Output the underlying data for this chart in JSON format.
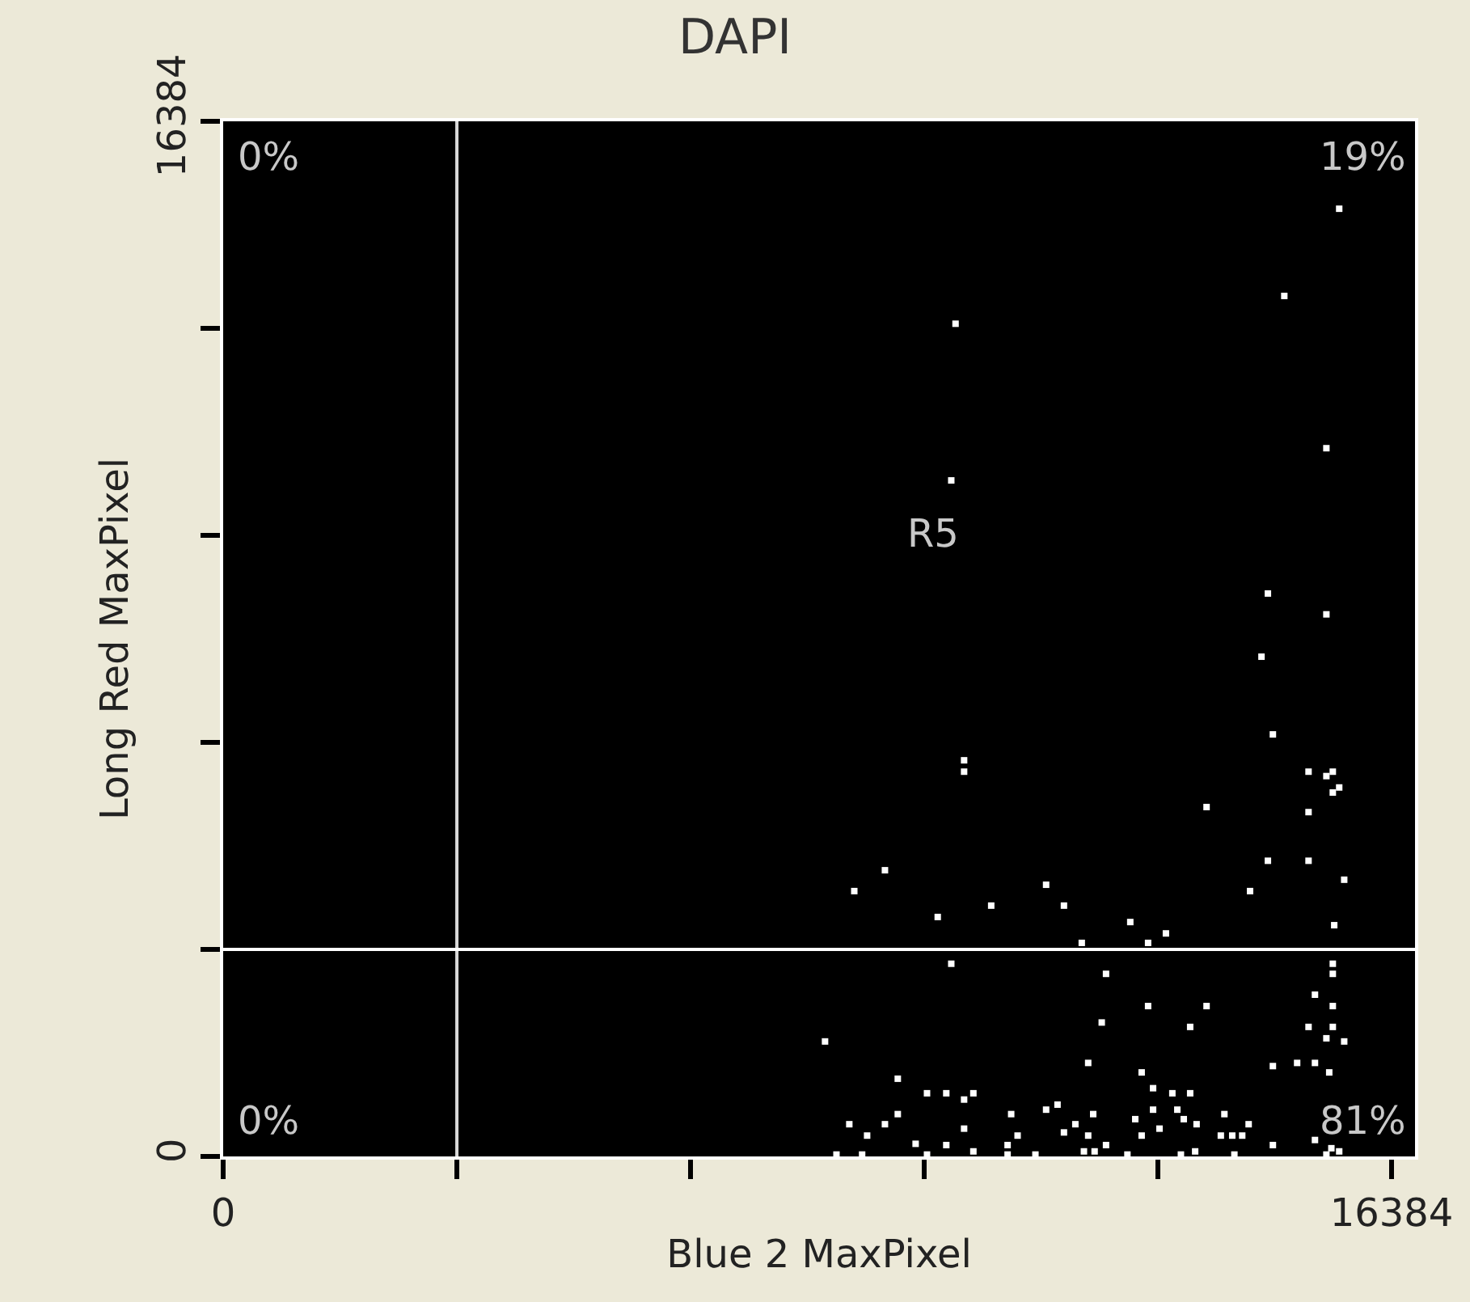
{
  "chart_data": {
    "type": "scatter",
    "title": "DAPI",
    "xlabel": "Blue 2 MaxPixel",
    "ylabel": "Long Red MaxPixel",
    "xlim": [
      0,
      16713
    ],
    "ylim": [
      0,
      16384
    ],
    "xticks": [
      0,
      {
        "value": 3277,
        "label": null
      },
      {
        "value": 6554,
        "label": null
      },
      {
        "value": 9830,
        "label": null
      },
      {
        "value": 13107,
        "label": null
      },
      16384
    ],
    "yticks": [
      0,
      {
        "value": 3277,
        "label": null
      },
      {
        "value": 6554,
        "label": null
      },
      {
        "value": 9830,
        "label": null
      },
      {
        "value": 13107,
        "label": null
      },
      16384
    ],
    "grid": false,
    "marker": "square",
    "ref_lines": [
      {
        "axis": "x",
        "value": 3277,
        "label": null,
        "color": "#d8d8d8"
      },
      {
        "axis": "y",
        "value": 3277,
        "label": null,
        "color": "#ffffff"
      }
    ],
    "annotations": [
      "0%",
      "19%",
      "0%",
      "81%",
      "R5"
    ],
    "series": [
      {
        "color": "#ffffff",
        "x": [
          14720,
          10390,
          10390,
          15220,
          15560,
          15470,
          15560,
          15650,
          13790,
          15220,
          9280,
          14650,
          15220,
          8850,
          11540,
          14400,
          15720,
          10770,
          11790,
          10020,
          12720,
          13220,
          15580,
          12040,
          12970,
          15650,
          14880,
          10270,
          10210,
          15470,
          14650,
          15470,
          14560,
          10210,
          12380,
          15560,
          15560,
          12970,
          13790,
          15560,
          12320,
          13560,
          15310,
          15220,
          15560,
          15470,
          15720,
          8440,
          12130,
          14720,
          15060,
          15310,
          15510,
          9460,
          12880,
          9870,
          10140,
          10520,
          10390,
          13040,
          13310,
          13560,
          11700,
          11540,
          13380,
          9460,
          11050,
          12200,
          14040,
          13470,
          13040,
          8780,
          9280,
          11950,
          12790,
          14380,
          13650,
          10390,
          11790,
          13130,
          9030,
          11140,
          12130,
          12880,
          13990,
          14150,
          14290,
          9710,
          10140,
          11000,
          12380,
          14720,
          15310,
          10520,
          12070,
          12220,
          13630,
          15540,
          15650,
          8600,
          8960,
          9870,
          11000,
          11390,
          12680,
          13430,
          14180,
          15470
        ],
        "values": [
          6680,
          6270,
          6090,
          6090,
          6090,
          6020,
          5760,
          5840,
          5530,
          5450,
          4530,
          4680,
          4680,
          4200,
          4300,
          4200,
          4380,
          3970,
          3970,
          3790,
          3710,
          3530,
          3660,
          3380,
          3380,
          15000,
          13620,
          13180,
          10700,
          11210,
          8910,
          8580,
          7910,
          3050,
          2890,
          3050,
          2890,
          2380,
          2380,
          2380,
          2120,
          2050,
          2560,
          2050,
          2050,
          1870,
          1820,
          1820,
          1480,
          1430,
          1480,
          1480,
          1330,
          1230,
          1330,
          1000,
          1000,
          1000,
          900,
          1080,
          1000,
          1000,
          820,
          740,
          740,
          670,
          670,
          670,
          670,
          590,
          740,
          510,
          510,
          510,
          590,
          510,
          510,
          440,
          380,
          440,
          330,
          330,
          330,
          330,
          330,
          330,
          330,
          200,
          180,
          180,
          180,
          180,
          260,
          80,
          80,
          80,
          80,
          130,
          80,
          30,
          30,
          30,
          30,
          30,
          30,
          30,
          30,
          30
        ]
      }
    ]
  }
}
